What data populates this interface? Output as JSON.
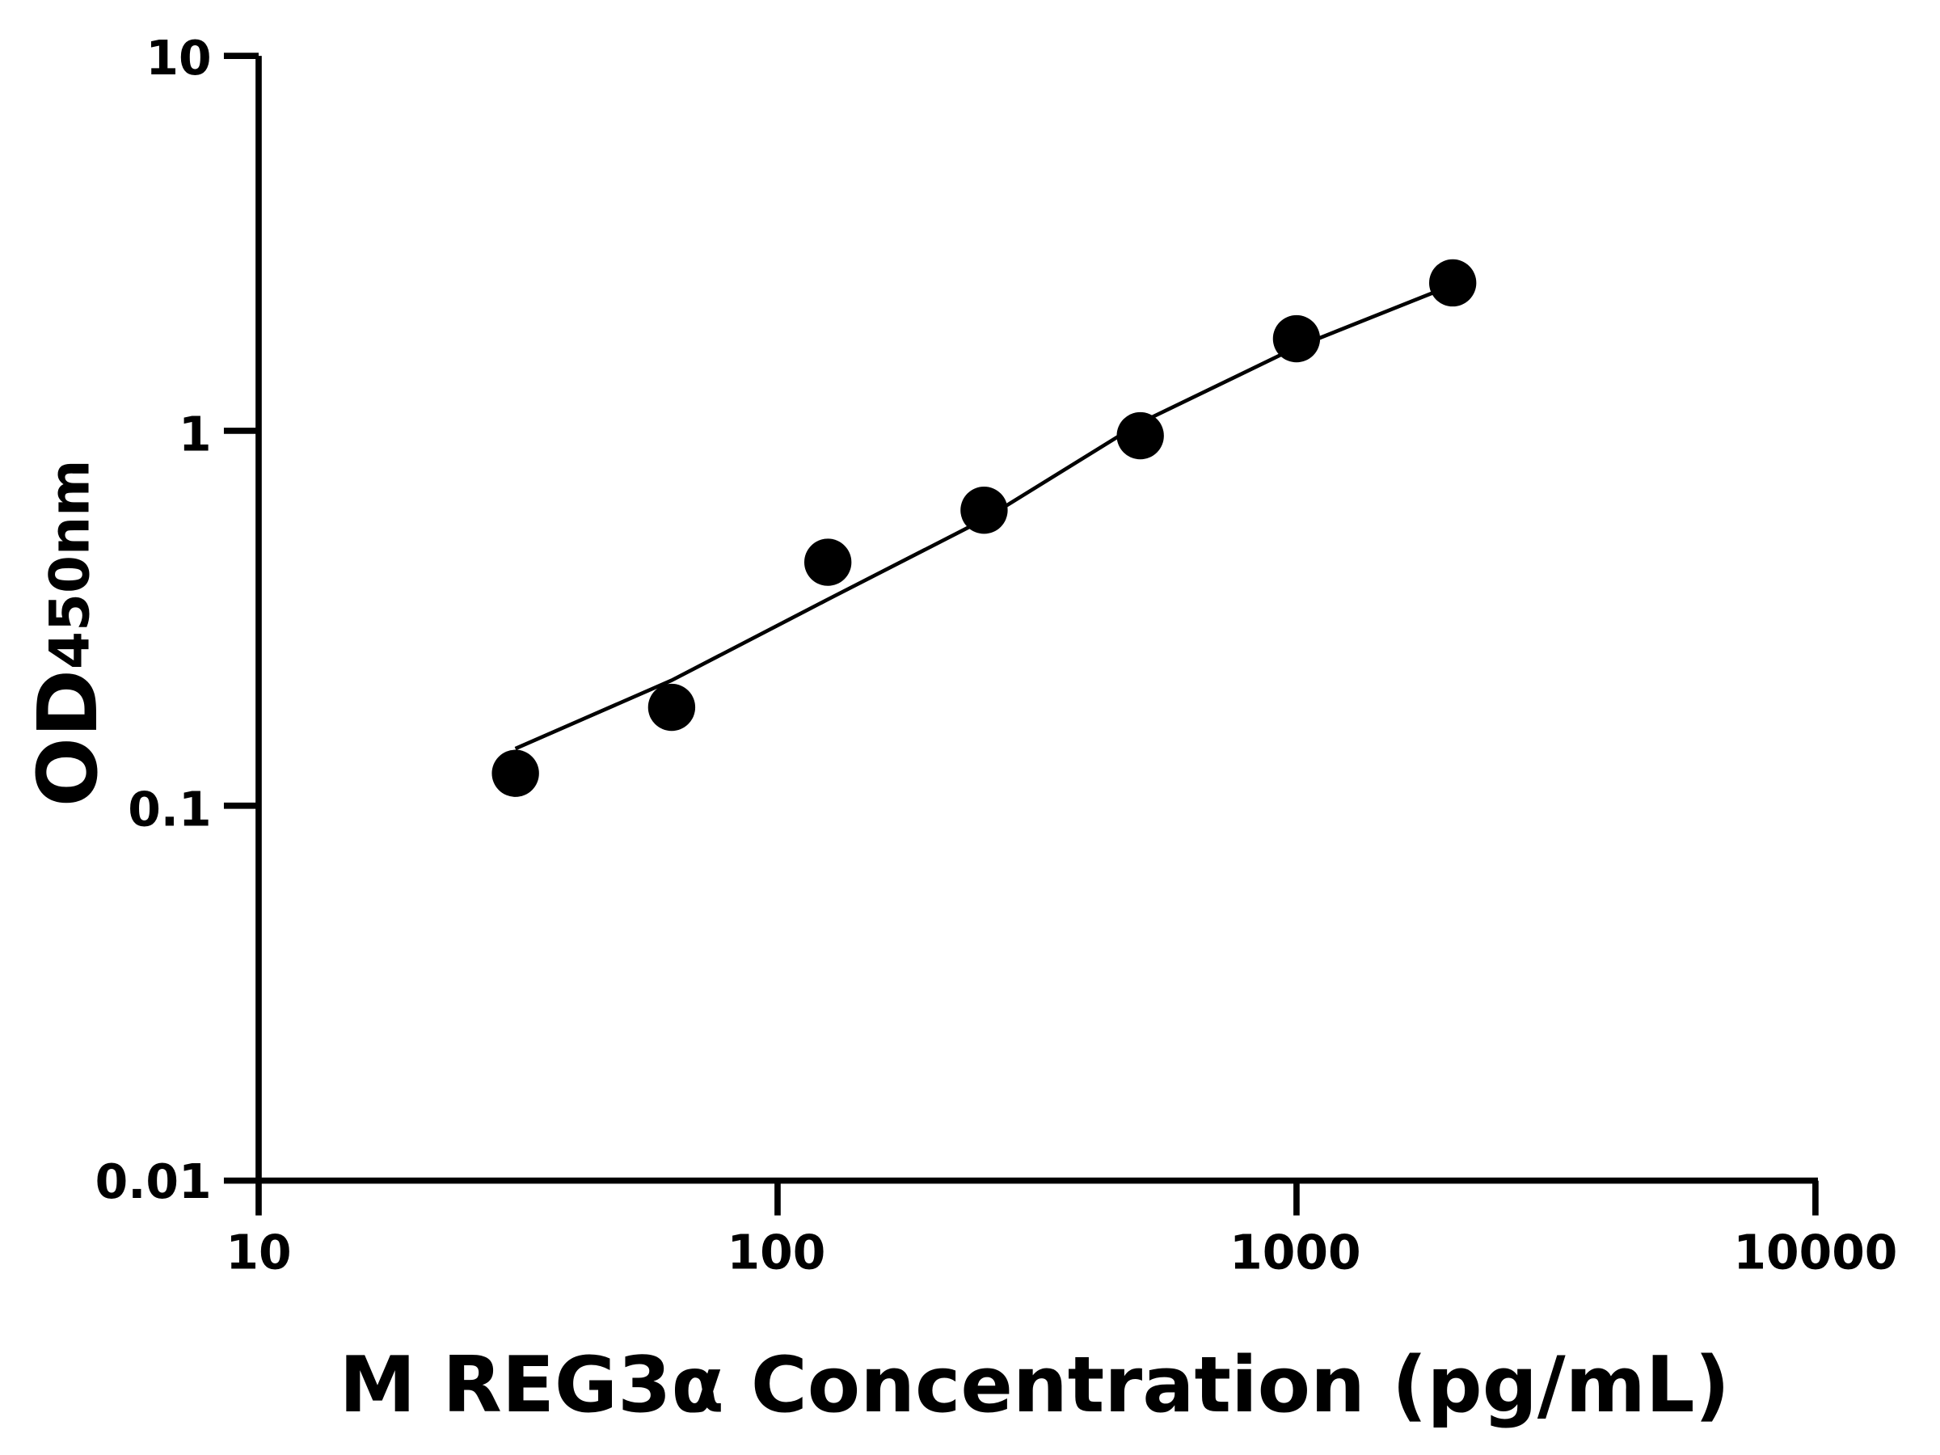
{
  "chart_data": {
    "type": "scatter",
    "title": "",
    "xlabel": "M REG3α Concentration (pg/mL)",
    "ylabel": {
      "main": "OD",
      "subscript": "450nm"
    },
    "x_scale": "log",
    "y_scale": "log",
    "xlim": [
      10,
      10000
    ],
    "ylim": [
      0.01,
      10
    ],
    "x_ticks": [
      "10",
      "100",
      "1000",
      "10000"
    ],
    "y_ticks": [
      "0.01",
      "0.1",
      "1",
      "10"
    ],
    "grid": false,
    "legend": "none",
    "marker_color": "#000000",
    "points": [
      {
        "x": 31.25,
        "y": 0.122
      },
      {
        "x": 62.5,
        "y": 0.183
      },
      {
        "x": 125,
        "y": 0.446
      },
      {
        "x": 250,
        "y": 0.614
      },
      {
        "x": 500,
        "y": 0.97
      },
      {
        "x": 1000,
        "y": 1.76
      },
      {
        "x": 2000,
        "y": 2.48
      }
    ],
    "fit_curve": [
      {
        "x": 31.25,
        "y": 0.142
      },
      {
        "x": 62.5,
        "y": 0.216
      },
      {
        "x": 125,
        "y": 0.355
      },
      {
        "x": 250,
        "y": 0.58
      },
      {
        "x": 500,
        "y": 1.05
      },
      {
        "x": 1000,
        "y": 1.67
      },
      {
        "x": 2000,
        "y": 2.45
      }
    ]
  }
}
